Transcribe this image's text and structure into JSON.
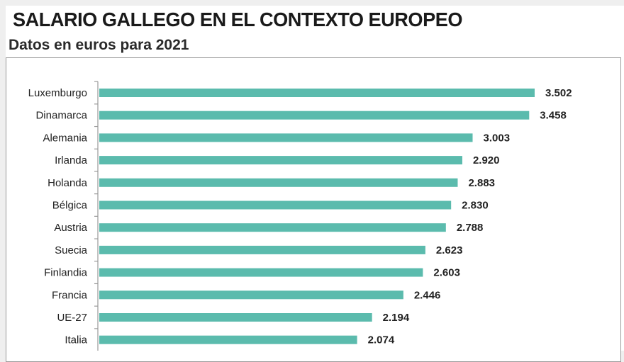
{
  "chart_data": {
    "type": "bar",
    "orientation": "horizontal",
    "title": "SALARIO GALLEGO EN EL CONTEXTO EUROPEO",
    "subtitle": "Datos en euros para 2021",
    "xlabel": "",
    "ylabel": "",
    "categories": [
      "Luxemburgo",
      "Dinamarca",
      "Alemania",
      "Irlanda",
      "Holanda",
      "Bélgica",
      "Austria",
      "Suecia",
      "Finlandia",
      "Francia",
      "UE-27",
      "Italia"
    ],
    "values": [
      3502,
      3458,
      3003,
      2920,
      2883,
      2830,
      2788,
      2623,
      2603,
      2446,
      2194,
      2074
    ],
    "value_labels": [
      "3.502",
      "3.458",
      "3.003",
      "2.920",
      "2.883",
      "2.830",
      "2.788",
      "2.623",
      "2.603",
      "2.446",
      "2.194",
      "2.074"
    ],
    "xlim": [
      0,
      4000
    ],
    "grid": false,
    "legend": "none",
    "bar_color": "#5bbbad"
  }
}
